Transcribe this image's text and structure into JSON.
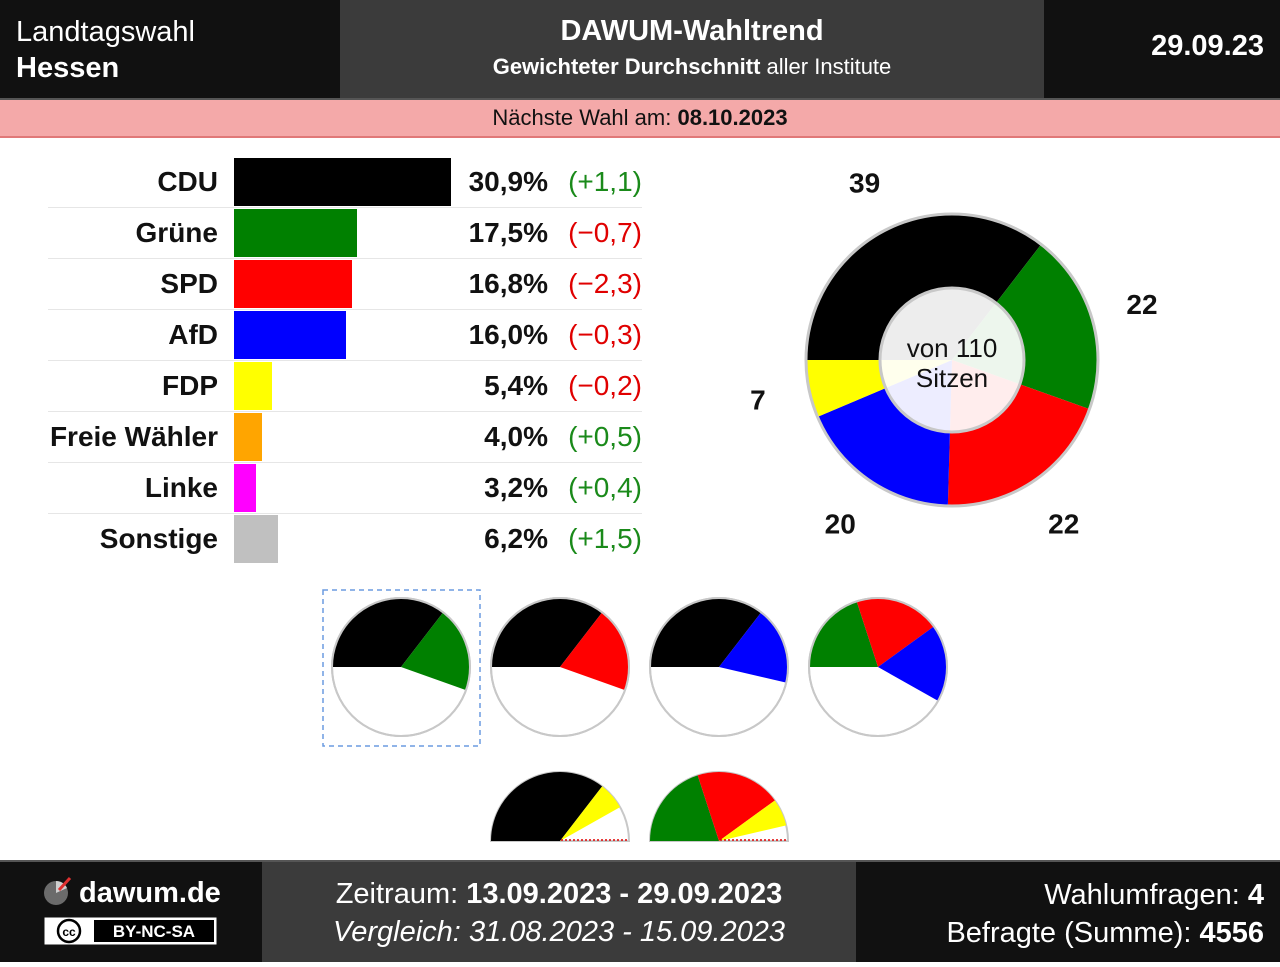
{
  "header": {
    "election_type": "Landtagswahl",
    "region": "Hessen",
    "title": "DAWUM-Wahltrend",
    "subtitle_bold": "Gewichteter Durchschnitt",
    "subtitle_rest": "aller Institute",
    "date": "29.09.23"
  },
  "next_election": {
    "label": "Nächste Wahl am:",
    "date": "08.10.2023"
  },
  "chart_data": [
    {
      "type": "bar",
      "orientation": "horizontal",
      "categories": [
        "CDU",
        "Grüne",
        "SPD",
        "AfD",
        "FDP",
        "Freie Wähler",
        "Linke",
        "Sonstige"
      ],
      "series": [
        {
          "values": [
            30.9,
            17.5,
            16.8,
            16.0,
            5.4,
            4.0,
            3.2,
            6.2
          ]
        }
      ],
      "value_labels": [
        "30,9%",
        "17,5%",
        "16,8%",
        "16,0%",
        "5,4%",
        "4,0%",
        "3,2%",
        "6,2%"
      ],
      "change_labels": [
        "(+1,1)",
        "(−0,7)",
        "(−2,3)",
        "(−0,3)",
        "(−0,2)",
        "(+0,5)",
        "(+0,4)",
        "(+1,5)"
      ],
      "changes": [
        1.1,
        -0.7,
        -2.3,
        -0.3,
        -0.2,
        0.5,
        0.4,
        1.5
      ],
      "colors": [
        "#000000",
        "#008000",
        "#ff0000",
        "#0000ff",
        "#ffff00",
        "#ffa500",
        "#ff00ff",
        "#c0c0c0"
      ],
      "title": "",
      "xlabel": "",
      "ylabel": ""
    },
    {
      "type": "pie",
      "variant": "donut",
      "categories": [
        "CDU",
        "Grüne",
        "SPD",
        "AfD",
        "FDP"
      ],
      "values": [
        39,
        22,
        22,
        20,
        7
      ],
      "colors": [
        "#000000",
        "#008000",
        "#ff0000",
        "#0000ff",
        "#ffff00"
      ],
      "center_line1": "von 110",
      "center_line2": "Sitzen"
    }
  ],
  "coalitions": [
    {
      "parties": [
        "CDU",
        "Grüne"
      ],
      "seats": [
        39,
        22
      ],
      "colors": [
        "#000000",
        "#008000"
      ],
      "selected": true
    },
    {
      "parties": [
        "CDU",
        "SPD"
      ],
      "seats": [
        39,
        22
      ],
      "colors": [
        "#000000",
        "#ff0000"
      ],
      "selected": false
    },
    {
      "parties": [
        "CDU",
        "AfD"
      ],
      "seats": [
        39,
        20
      ],
      "colors": [
        "#000000",
        "#0000ff"
      ],
      "selected": false
    },
    {
      "parties": [
        "Grüne",
        "SPD",
        "AfD"
      ],
      "seats": [
        22,
        22,
        20
      ],
      "colors": [
        "#008000",
        "#ff0000",
        "#0000ff"
      ],
      "selected": false
    },
    {
      "parties": [
        "CDU",
        "FDP"
      ],
      "seats": [
        39,
        7
      ],
      "colors": [
        "#000000",
        "#ffff00"
      ],
      "selected": false
    },
    {
      "parties": [
        "Grüne",
        "SPD",
        "FDP"
      ],
      "seats": [
        22,
        22,
        7
      ],
      "colors": [
        "#008000",
        "#ff0000",
        "#ffff00"
      ],
      "selected": false
    }
  ],
  "total_seats": 110,
  "footer": {
    "site": "dawum.de",
    "license": "BY-NC-SA",
    "period_label": "Zeitraum:",
    "period": "13.09.2023 - 29.09.2023",
    "compare_label": "Vergleich:",
    "compare": "31.08.2023 - 15.09.2023",
    "polls_label": "Wahlumfragen:",
    "polls": "4",
    "respondents_label": "Befragte (Summe):",
    "respondents": "4556"
  }
}
